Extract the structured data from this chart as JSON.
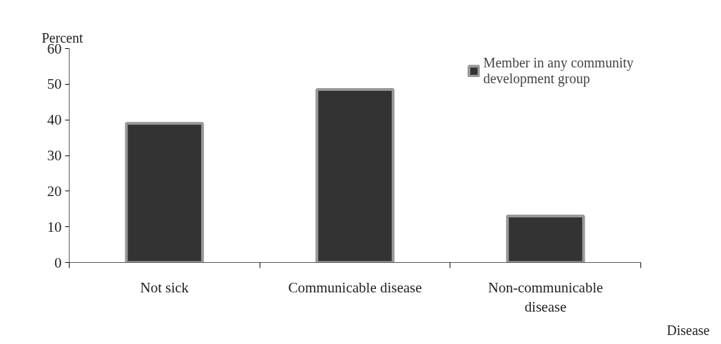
{
  "chart_data": {
    "type": "bar",
    "xlabel": "Disease",
    "ylabel": "Percent",
    "categories": [
      "Not sick",
      "Communicable disease",
      "Non-communicable disease"
    ],
    "series": [
      {
        "name": "Member in any community development group",
        "color": "#333333",
        "values": [
          39,
          48.5,
          13
        ]
      }
    ],
    "ylim": [
      0,
      60
    ],
    "yticks": [
      0,
      10,
      20,
      30,
      40,
      50,
      60
    ],
    "grid": false,
    "legend": "top right"
  }
}
